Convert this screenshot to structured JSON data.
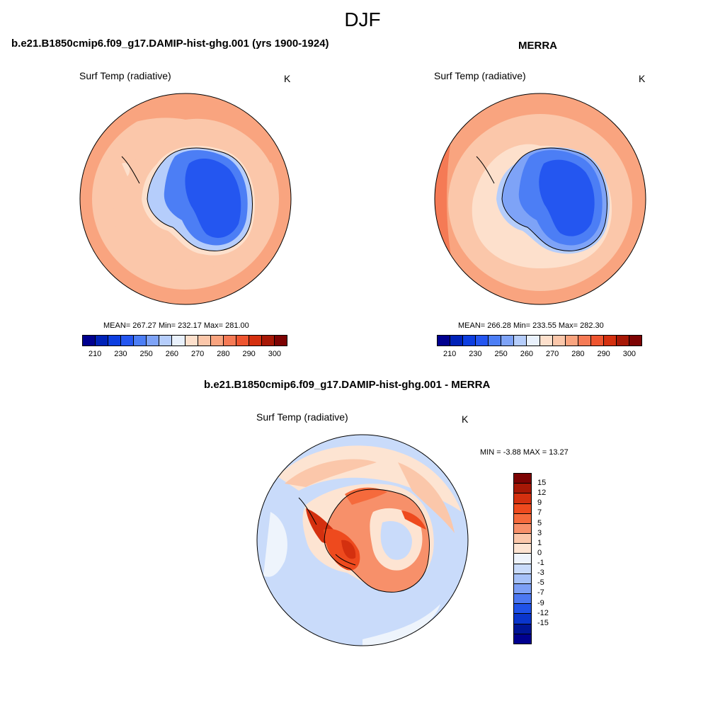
{
  "main_title": "DJF",
  "panels": [
    {
      "title": "b.e21.B1850cmip6.f09_g17.DAMIP-hist-ghg.001 (yrs 1900-1924)",
      "variable": "Surf Temp (radiative)",
      "units": "K",
      "stats": "MEAN= 267.27  Min= 232.17  Max= 281.00",
      "colorbar_ticks": [
        "210",
        "230",
        "250",
        "260",
        "270",
        "280",
        "290",
        "300"
      ]
    },
    {
      "title": "MERRA",
      "variable": "Surf Temp (radiative)",
      "units": "K",
      "stats": "MEAN= 266.28  Min= 233.55  Max= 282.30",
      "colorbar_ticks": [
        "210",
        "230",
        "250",
        "260",
        "270",
        "280",
        "290",
        "300"
      ]
    },
    {
      "title": "b.e21.B1850cmip6.f09_g17.DAMIP-hist-ghg.001 - MERRA",
      "variable": "Surf Temp (radiative)",
      "units": "K",
      "stats": "MIN =  -3.88 MAX =  13.27",
      "colorbar_ticks": [
        "15",
        "12",
        "9",
        "7",
        "5",
        "3",
        "1",
        "0",
        "-1",
        "-3",
        "-5",
        "-7",
        "-9",
        "-12",
        "-15"
      ]
    }
  ],
  "colors": {
    "abs_scale": [
      "#00008f",
      "#0022b8",
      "#0d3ee0",
      "#2456f0",
      "#4c7ef5",
      "#7ea3f7",
      "#b5cdfb",
      "#e9f1fc",
      "#fde0cc",
      "#fbc7aa",
      "#f9a47f",
      "#f57a55",
      "#ee5530",
      "#d4300f",
      "#a71806",
      "#7d0303"
    ],
    "diff_scale": [
      "#7d0303",
      "#a71806",
      "#d4300f",
      "#ee4a1e",
      "#f56a3c",
      "#f7906a",
      "#fbc7aa",
      "#fde4d2",
      "#eef4fc",
      "#c9dbfa",
      "#a6c1f8",
      "#7c9ff6",
      "#4c78f2",
      "#2052e8",
      "#0a35cc",
      "#001596",
      "#00008f"
    ]
  }
}
